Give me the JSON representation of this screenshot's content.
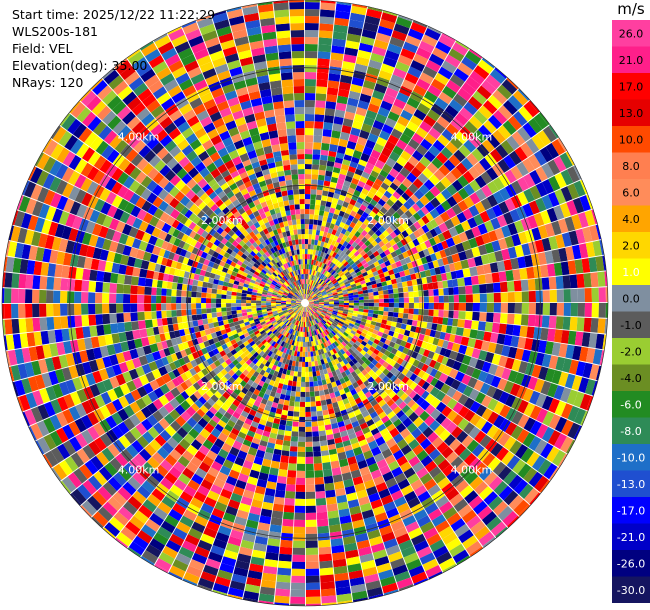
{
  "info": {
    "start_time": "Start time: 2025/12/22 11:22:29",
    "instrument": "WLS200s-181",
    "field": "Field: VEL",
    "elevation": "Elevation(deg): 35.00",
    "nrays": "NRays: 120"
  },
  "chart_data": {
    "type": "heatmap",
    "projection": "polar (PPI)",
    "title": "",
    "field": "VEL",
    "n_rays": 120,
    "elevation_deg": 35.0,
    "range_rings_km": [
      {
        "km": 2,
        "label": "2.00km"
      },
      {
        "km": 4,
        "label": "4.00km"
      }
    ],
    "ring_label_azimuths_deg": [
      315,
      45,
      135,
      225
    ],
    "colorbar": {
      "unit": "m/s",
      "ticks": [
        "26.0",
        "21.0",
        "17.0",
        "13.0",
        "10.0",
        "8.0",
        "6.0",
        "4.0",
        "2.0",
        "1.0",
        "0.0",
        "-1.0",
        "-2.0",
        "-4.0",
        "-6.0",
        "-8.0",
        "-10.0",
        "-13.0",
        "-17.0",
        "-21.0",
        "-26.0",
        "-30.0"
      ],
      "colors": [
        "#ff3fa0",
        "#ff1f8a",
        "#ff0000",
        "#e60000",
        "#ff4a00",
        "#ff7f50",
        "#ff8c5a",
        "#ffa500",
        "#ffd700",
        "#ffff00",
        "#7f8fa0",
        "#5c5c5c",
        "#9acd32",
        "#6b8e23",
        "#228b22",
        "#2e8b57",
        "#1e6fc8",
        "#1f4fd0",
        "#0000ff",
        "#0000c8",
        "#000080",
        "#151560"
      ]
    }
  }
}
